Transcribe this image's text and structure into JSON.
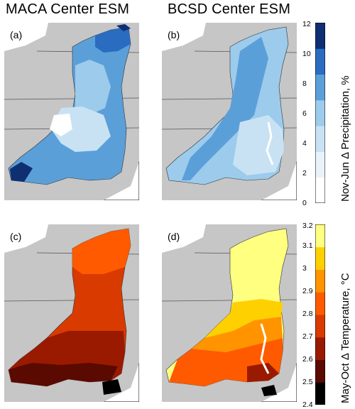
{
  "column_titles": [
    "MACA Center ESM",
    "BCSD Center ESM"
  ],
  "panels": [
    {
      "label": "(a)"
    },
    {
      "label": "(b)"
    },
    {
      "label": "(c)"
    },
    {
      "label": "(d)"
    }
  ],
  "colorbars": {
    "precip": {
      "title": "Nov-Jun Δ Precipitation, %",
      "ticks": [
        "0",
        "2",
        "4",
        "6",
        "8",
        "10",
        "12"
      ],
      "colors": [
        "#ffffff",
        "#e9f3fb",
        "#c8e2f4",
        "#9ccbec",
        "#5b9fd9",
        "#2a6cc0",
        "#0f2f73"
      ]
    },
    "temp": {
      "title": "May-Oct Δ Temperature, °C",
      "ticks": [
        "2.4",
        "2.5",
        "2.6",
        "2.7",
        "2.8",
        "2.9",
        "3",
        "3.1",
        "3.2"
      ],
      "colors": [
        "#000000",
        "#5a0a00",
        "#9a1a00",
        "#d93a00",
        "#ff5a00",
        "#ff9400",
        "#ffd000",
        "#ffff80"
      ]
    }
  },
  "map_colors": {
    "land": "#c6c6c6",
    "border": "#555555",
    "water": "#ffffff"
  }
}
